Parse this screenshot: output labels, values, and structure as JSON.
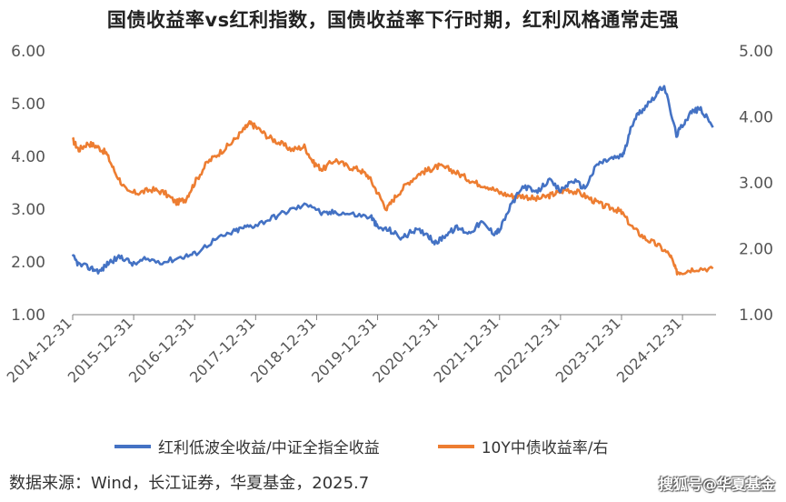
{
  "title": "国债收益率vs红利指数，国债收益率下行时期，红利风格通常走强",
  "source": "数据来源：Wind，长江证券，华夏基金，2025.7",
  "watermark": "搜狐号@华夏基金",
  "legend": {
    "series1": "红利低波全收益/中证全指全收益",
    "series2": "10Y中债收益率/右"
  },
  "colors": {
    "series1": "#4472C4",
    "series2": "#ED7D31",
    "axis": "#7f7f7f"
  },
  "chart_data": {
    "type": "line",
    "x_ticks": [
      "2014-12-31",
      "2015-12-31",
      "2016-12-31",
      "2017-12-31",
      "2018-12-31",
      "2019-12-31",
      "2020-12-31",
      "2021-12-31",
      "2022-12-31",
      "2023-12-31",
      "2024-12-31"
    ],
    "y_left": {
      "ticks": [
        "1.00",
        "2.00",
        "3.00",
        "4.00",
        "5.00",
        "6.00"
      ],
      "lim": [
        1,
        6
      ]
    },
    "y_right": {
      "ticks": [
        "1.00",
        "2.00",
        "3.00",
        "4.00",
        "5.00"
      ],
      "lim": [
        1,
        5
      ]
    },
    "series": [
      {
        "name": "红利低波全收益/中证全指全收益",
        "axis": "left",
        "x": [
          2015.0,
          2015.1,
          2015.3,
          2015.45,
          2015.6,
          2015.8,
          2016.0,
          2016.2,
          2016.5,
          2016.8,
          2017.0,
          2017.3,
          2017.6,
          2017.8,
          2018.0,
          2018.3,
          2018.6,
          2018.9,
          2019.1,
          2019.3,
          2019.6,
          2019.9,
          2020.0,
          2020.2,
          2020.4,
          2020.6,
          2020.8,
          2020.95,
          2021.1,
          2021.3,
          2021.5,
          2021.7,
          2021.9,
          2022.0,
          2022.2,
          2022.4,
          2022.6,
          2022.8,
          2023.0,
          2023.2,
          2023.4,
          2023.6,
          2023.8,
          2024.0,
          2024.05,
          2024.2,
          2024.35,
          2024.55,
          2024.7,
          2024.9,
          2025.0,
          2025.15,
          2025.3,
          2025.5
        ],
        "values": [
          2.1,
          1.95,
          1.88,
          1.82,
          2.0,
          2.1,
          1.95,
          2.05,
          2.0,
          2.1,
          2.15,
          2.4,
          2.55,
          2.65,
          2.7,
          2.85,
          3.0,
          3.1,
          2.9,
          2.95,
          2.9,
          2.85,
          2.65,
          2.6,
          2.45,
          2.6,
          2.55,
          2.35,
          2.5,
          2.65,
          2.55,
          2.75,
          2.55,
          2.6,
          3.1,
          3.45,
          3.3,
          3.55,
          3.35,
          3.55,
          3.4,
          3.85,
          3.95,
          4.0,
          4.1,
          4.7,
          4.9,
          5.15,
          5.35,
          4.4,
          4.6,
          4.85,
          4.9,
          4.55
        ]
      },
      {
        "name": "10Y中债收益率/右",
        "axis": "right",
        "x": [
          2015.0,
          2015.1,
          2015.25,
          2015.4,
          2015.55,
          2015.7,
          2015.9,
          2016.1,
          2016.3,
          2016.5,
          2016.7,
          2016.85,
          2017.0,
          2017.2,
          2017.4,
          2017.6,
          2017.8,
          2017.9,
          2018.0,
          2018.2,
          2018.4,
          2018.6,
          2018.8,
          2018.95,
          2019.1,
          2019.3,
          2019.5,
          2019.7,
          2019.85,
          2020.0,
          2020.15,
          2020.3,
          2020.5,
          2020.7,
          2020.85,
          2021.0,
          2021.2,
          2021.4,
          2021.6,
          2021.8,
          2022.0,
          2022.2,
          2022.4,
          2022.6,
          2022.8,
          2022.95,
          2023.1,
          2023.3,
          2023.5,
          2023.7,
          2023.9,
          2024.0,
          2024.2,
          2024.4,
          2024.6,
          2024.8,
          2024.9,
          2025.0,
          2025.2,
          2025.5
        ],
        "values": [
          3.65,
          3.5,
          3.6,
          3.55,
          3.45,
          3.15,
          2.85,
          2.85,
          2.9,
          2.85,
          2.7,
          2.75,
          3.0,
          3.3,
          3.45,
          3.6,
          3.8,
          3.9,
          3.85,
          3.7,
          3.6,
          3.5,
          3.55,
          3.3,
          3.2,
          3.35,
          3.25,
          3.2,
          3.1,
          2.85,
          2.6,
          2.8,
          3.0,
          3.15,
          3.2,
          3.25,
          3.2,
          3.1,
          3.0,
          2.95,
          2.85,
          2.8,
          2.8,
          2.75,
          2.8,
          2.85,
          2.9,
          2.85,
          2.75,
          2.65,
          2.6,
          2.55,
          2.3,
          2.15,
          2.05,
          1.9,
          1.65,
          1.65,
          1.7,
          1.7
        ]
      }
    ]
  }
}
